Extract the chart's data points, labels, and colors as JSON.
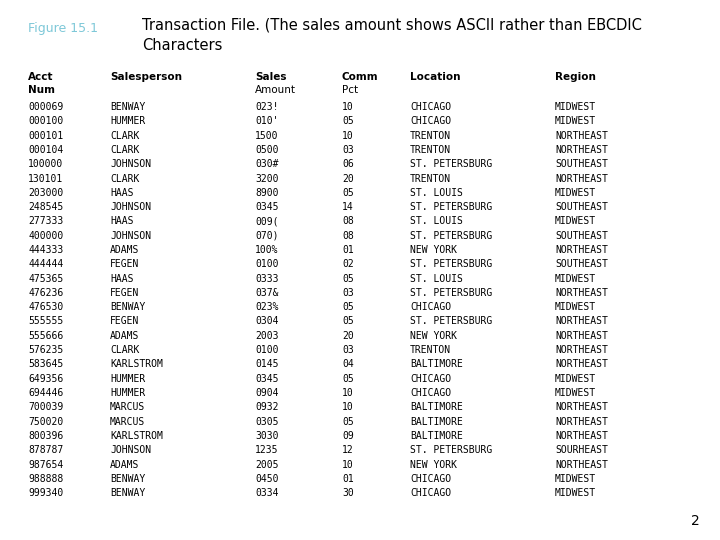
{
  "figure_label": "Figure 15.1",
  "title": "Transaction File. (The sales amount shows ASCII rather than EBCDIC\nCharacters",
  "page_number": "2",
  "col_x_inches": [
    0.28,
    1.1,
    2.55,
    3.42,
    4.1,
    5.55
  ],
  "rows": [
    [
      "000069",
      "BENWAY",
      "023!",
      "10",
      "CHICAGO",
      "MIDWEST"
    ],
    [
      "000100",
      "HUMMER",
      "010'",
      "05",
      "CHICAGO",
      "MIDWEST"
    ],
    [
      "000101",
      "CLARK",
      "1500",
      "10",
      "TRENTON",
      "NORTHEAST"
    ],
    [
      "000104",
      "CLARK",
      "0500",
      "03",
      "TRENTON",
      "NORTHEAST"
    ],
    [
      "100000",
      "JOHNSON",
      "030#",
      "06",
      "ST. PETERSBURG",
      "SOUTHEAST"
    ],
    [
      "130101",
      "CLARK",
      "3200",
      "20",
      "TRENTON",
      "NORTHEAST"
    ],
    [
      "203000",
      "HAAS",
      "8900",
      "05",
      "ST. LOUIS",
      "MIDWEST"
    ],
    [
      "248545",
      "JOHNSON",
      "0345",
      "14",
      "ST. PETERSBURG",
      "SOUTHEAST"
    ],
    [
      "277333",
      "HAAS",
      "009(",
      "08",
      "ST. LOUIS",
      "MIDWEST"
    ],
    [
      "400000",
      "JOHNSON",
      "070)",
      "08",
      "ST. PETERSBURG",
      "SOUTHEAST"
    ],
    [
      "444333",
      "ADAMS",
      "100%",
      "01",
      "NEW YORK",
      "NORTHEAST"
    ],
    [
      "444444",
      "FEGEN",
      "0100",
      "02",
      "ST. PETERSBURG",
      "SOUTHEAST"
    ],
    [
      "475365",
      "HAAS",
      "0333",
      "05",
      "ST. LOUIS",
      "MIDWEST"
    ],
    [
      "476236",
      "FEGEN",
      "037&",
      "03",
      "ST. PETERSBURG",
      "NORTHEAST"
    ],
    [
      "476530",
      "BENWAY",
      "023%",
      "05",
      "CHICAGO",
      "MIDWEST"
    ],
    [
      "555555",
      "FEGEN",
      "0304",
      "05",
      "ST. PETERSBURG",
      "NORTHEAST"
    ],
    [
      "555666",
      "ADAMS",
      "2003",
      "20",
      "NEW YORK",
      "NORTHEAST"
    ],
    [
      "576235",
      "CLARK",
      "0100",
      "03",
      "TRENTON",
      "NORTHEAST"
    ],
    [
      "583645",
      "KARLSTROM",
      "0145",
      "04",
      "BALTIMORE",
      "NORTHEAST"
    ],
    [
      "649356",
      "HUMMER",
      "0345",
      "05",
      "CHICAGO",
      "MIDWEST"
    ],
    [
      "694446",
      "HUMMER",
      "0904",
      "10",
      "CHICAGO",
      "MIDWEST"
    ],
    [
      "700039",
      "MARCUS",
      "0932",
      "10",
      "BALTIMORE",
      "NORTHEAST"
    ],
    [
      "750020",
      "MARCUS",
      "0305",
      "05",
      "BALTIMORE",
      "NORTHEAST"
    ],
    [
      "800396",
      "KARLSTROM",
      "3030",
      "09",
      "BALTIMORE",
      "NORTHEAST"
    ],
    [
      "878787",
      "JOHNSON",
      "1235",
      "12",
      "ST. PETERSBURG",
      "SOURHEAST"
    ],
    [
      "987654",
      "ADAMS",
      "2005",
      "10",
      "NEW YORK",
      "NORTHEAST"
    ],
    [
      "988888",
      "BENWAY",
      "0450",
      "01",
      "CHICAGO",
      "MIDWEST"
    ],
    [
      "999340",
      "BENWAY",
      "0334",
      "30",
      "CHICAGO",
      "MIDWEST"
    ]
  ],
  "figure_label_color": "#7ec8d8",
  "data_font_size": 7.0,
  "header_font_size": 7.5,
  "title_font_size": 10.5,
  "figure_label_font_size": 9.0,
  "bg_color": "#ffffff"
}
